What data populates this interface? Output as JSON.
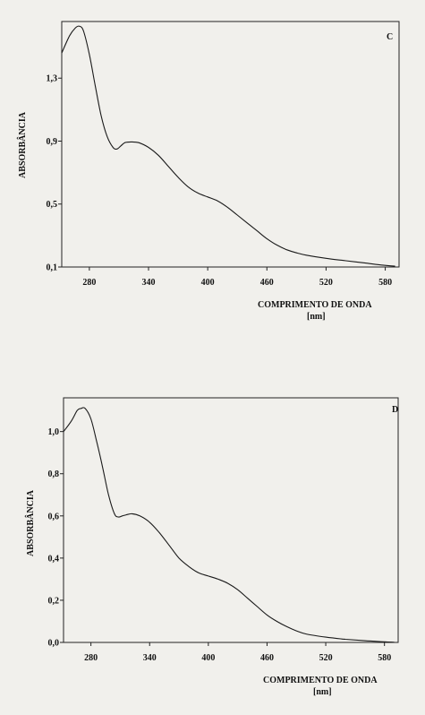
{
  "chart_data": [
    {
      "type": "line",
      "panel_label": "C",
      "xlabel": "COMPRIMENTO DE ONDA",
      "xunit": "[nm]",
      "ylabel": "ABSORBÂNCIA",
      "xlim": [
        252,
        594
      ],
      "ylim": [
        0.1,
        1.66
      ],
      "x_ticks": [
        "280",
        "340",
        "400",
        "460",
        "520",
        "580"
      ],
      "y_ticks": [
        "0,1",
        "0,5",
        "0,9",
        "1,3"
      ],
      "grid": false,
      "series": [
        {
          "x": [
            252,
            260,
            266,
            270,
            274,
            280,
            286,
            292,
            298,
            304,
            308,
            312,
            316,
            322,
            330,
            340,
            350,
            360,
            370,
            380,
            390,
            400,
            410,
            420,
            430,
            440,
            450,
            460,
            470,
            480,
            490,
            500,
            520,
            540,
            560,
            580,
            590
          ],
          "y": [
            1.46,
            1.57,
            1.62,
            1.63,
            1.6,
            1.45,
            1.25,
            1.06,
            0.93,
            0.86,
            0.85,
            0.87,
            0.89,
            0.895,
            0.89,
            0.86,
            0.81,
            0.74,
            0.67,
            0.61,
            0.57,
            0.545,
            0.52,
            0.48,
            0.43,
            0.38,
            0.33,
            0.28,
            0.24,
            0.21,
            0.19,
            0.175,
            0.155,
            0.14,
            0.125,
            0.11,
            0.105
          ]
        }
      ]
    },
    {
      "type": "line",
      "panel_label": "D",
      "xlabel": "COMPRIMENTO DE ONDA",
      "xunit": "[nm]",
      "ylabel": "ABSORBÂNCIA",
      "xlim": [
        252,
        594
      ],
      "ylim": [
        0.0,
        1.16
      ],
      "x_ticks": [
        "280",
        "340",
        "400",
        "460",
        "520",
        "580"
      ],
      "y_ticks": [
        "0,0",
        "0,2",
        "0,4",
        "0,6",
        "0,8",
        "1,0"
      ],
      "grid": false,
      "series": [
        {
          "x": [
            252,
            260,
            266,
            270,
            274,
            280,
            286,
            292,
            298,
            304,
            308,
            312,
            316,
            322,
            330,
            340,
            350,
            360,
            370,
            380,
            390,
            400,
            410,
            420,
            430,
            440,
            450,
            460,
            470,
            480,
            490,
            500,
            520,
            540,
            560,
            580,
            590
          ],
          "y": [
            1.0,
            1.05,
            1.1,
            1.11,
            1.11,
            1.06,
            0.95,
            0.83,
            0.7,
            0.61,
            0.595,
            0.6,
            0.605,
            0.61,
            0.6,
            0.57,
            0.52,
            0.46,
            0.4,
            0.36,
            0.33,
            0.315,
            0.3,
            0.28,
            0.25,
            0.21,
            0.17,
            0.13,
            0.1,
            0.075,
            0.055,
            0.04,
            0.025,
            0.015,
            0.008,
            0.003,
            0.001
          ]
        }
      ]
    }
  ]
}
